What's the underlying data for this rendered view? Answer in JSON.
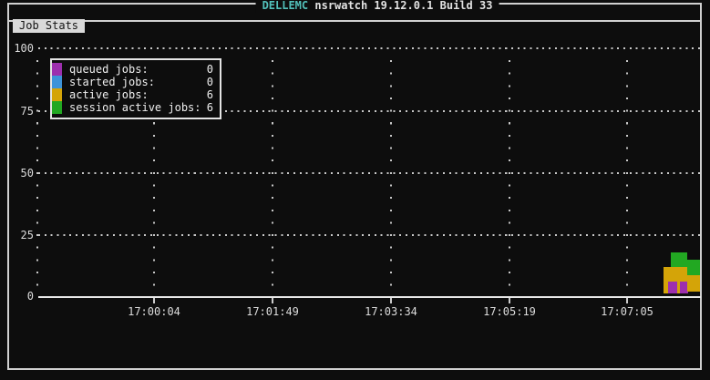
{
  "window": {
    "title_brand": "DELLEMC",
    "title_rest": " nsrwatch 19.12.0.1 Build 33"
  },
  "tab": {
    "label": "Job Stats"
  },
  "colors": {
    "background": "#0d0d0d",
    "frame": "#d0d0d0",
    "grid_dots": "#c8c8c8",
    "axis": "#e8e8e8",
    "brand_teal": "#52c0ba",
    "tab_bg": "#d9d9d9",
    "queued": "#9d2fae",
    "started": "#3d93d9",
    "active": "#d4a408",
    "session_active": "#22a822"
  },
  "legend": {
    "items": [
      {
        "label": "queued jobs:",
        "value": "0",
        "series": "queued jobs"
      },
      {
        "label": "started jobs:",
        "value": "0",
        "series": "started jobs"
      },
      {
        "label": "active jobs:",
        "value": "6",
        "series": "active jobs"
      },
      {
        "label": "session active jobs:",
        "value": "6",
        "series": "session active jobs"
      }
    ]
  },
  "chart_data": {
    "type": "area",
    "title": "Job Stats",
    "ylim": [
      0,
      100
    ],
    "y_ticks": [
      "100",
      "75",
      "50",
      "25",
      "0"
    ],
    "x_ticks": [
      "17:00:04",
      "17:01:49",
      "17:03:34",
      "17:05:19",
      "17:07:05"
    ],
    "grid": "dotted",
    "legend_position": "top-left",
    "series": [
      {
        "name": "queued jobs",
        "color_key": "queued",
        "current": 0
      },
      {
        "name": "started jobs",
        "color_key": "started",
        "current": 0
      },
      {
        "name": "active jobs",
        "color_key": "active",
        "current": 6
      },
      {
        "name": "session active jobs",
        "color_key": "session_active",
        "current": 6
      }
    ],
    "recent_blocks": [
      {
        "series_color_key": "session_active",
        "x": 736,
        "y": 277,
        "w": 18,
        "h": 16
      },
      {
        "series_color_key": "active",
        "x": 728,
        "y": 293,
        "w": 26,
        "h": 16
      },
      {
        "series_color_key": "active",
        "x": 728,
        "y": 309,
        "w": 26,
        "h": 13
      },
      {
        "series_color_key": "queued",
        "x": 733,
        "y": 309,
        "w": 10,
        "h": 13
      },
      {
        "series_color_key": "queued",
        "x": 746,
        "y": 309,
        "w": 9,
        "h": 13
      },
      {
        "series_color_key": "session_active",
        "x": 754,
        "y": 285,
        "w": 14,
        "h": 17
      },
      {
        "series_color_key": "active",
        "x": 754,
        "y": 302,
        "w": 14,
        "h": 18
      }
    ]
  }
}
